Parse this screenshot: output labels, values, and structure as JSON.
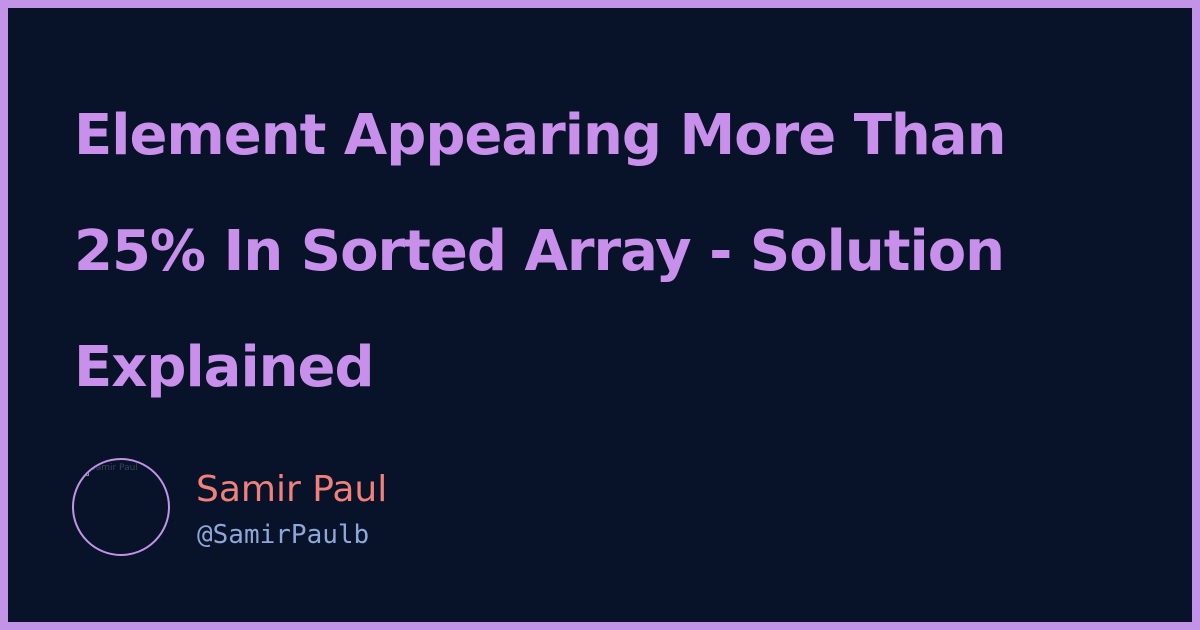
{
  "post": {
    "title": "Element Appearing More Than 25% In Sorted Array - Solution Explained"
  },
  "author": {
    "name": "Samir Paul",
    "handle": "@SamirPaulb",
    "avatar_alt": "Samir Paul"
  },
  "colors": {
    "border": "#c293e6",
    "background": "#08132a",
    "title": "#c890ea",
    "name": "#f0807a",
    "handle": "#8fa7d8"
  },
  "icons": {
    "avatar": "broken-image-icon"
  }
}
